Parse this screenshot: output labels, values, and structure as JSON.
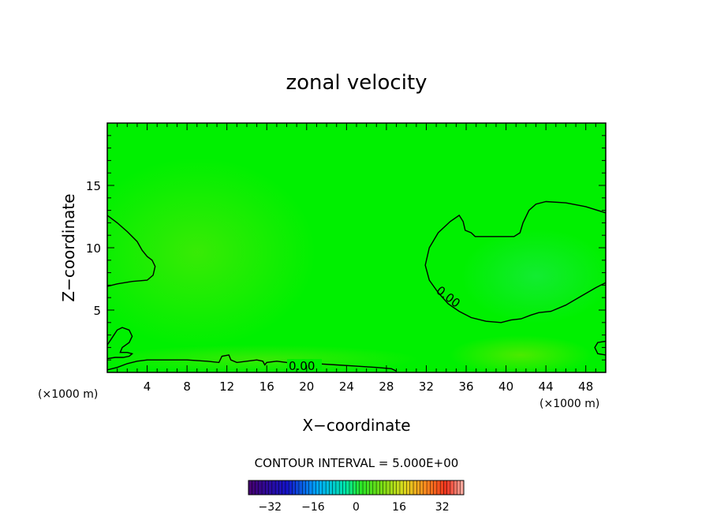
{
  "chart_data": {
    "type": "heatmap",
    "title": "zonal velocity",
    "xlabel": "X−coordinate",
    "ylabel": "Z−coordinate",
    "x_unit_left": "(×1000 m)",
    "x_unit_right": "(×1000 m)",
    "xlim": [
      0,
      50
    ],
    "ylim": [
      0,
      20
    ],
    "xticks": [
      4,
      8,
      12,
      16,
      20,
      24,
      28,
      32,
      36,
      40,
      44,
      48
    ],
    "yticks": [
      5,
      10,
      15
    ],
    "contour_label": "0.00",
    "contour_interval_text": "CONTOUR INTERVAL = 5.000E+00",
    "colorbar": {
      "min": -40,
      "max": 40,
      "ticks": [
        -32,
        -16,
        0,
        16,
        32
      ],
      "tick_labels": [
        "−32",
        "−16",
        "0",
        "16",
        "32"
      ]
    },
    "contours": [
      {
        "name": "left-upper",
        "points": [
          [
            0,
            12.6
          ],
          [
            1,
            12
          ],
          [
            2,
            11.3
          ],
          [
            3,
            10.5
          ],
          [
            3.5,
            9.8
          ],
          [
            4,
            9.3
          ],
          [
            4.5,
            9
          ],
          [
            4.8,
            8.5
          ],
          [
            4.6,
            7.8
          ],
          [
            4,
            7.4
          ],
          [
            2.5,
            7.3
          ],
          [
            1,
            7.1
          ],
          [
            0,
            6.9
          ]
        ]
      },
      {
        "name": "bottom",
        "points": [
          [
            0,
            0.2
          ],
          [
            1,
            0.4
          ],
          [
            2,
            0.7
          ],
          [
            3,
            0.9
          ],
          [
            4,
            1.0
          ],
          [
            6,
            1.0
          ],
          [
            8,
            1.0
          ],
          [
            10,
            0.9
          ],
          [
            11.2,
            0.8
          ],
          [
            11.5,
            1.3
          ],
          [
            12.2,
            1.4
          ],
          [
            12.4,
            1.0
          ],
          [
            13,
            0.8
          ],
          [
            14,
            0.9
          ],
          [
            15,
            1.0
          ],
          [
            15.6,
            0.9
          ],
          [
            15.8,
            0.6
          ],
          [
            16,
            0.8
          ],
          [
            17,
            0.9
          ],
          [
            18,
            0.8
          ],
          [
            19,
            0.7
          ],
          [
            21,
            0.7
          ],
          [
            23,
            0.6
          ],
          [
            25,
            0.5
          ],
          [
            27,
            0.4
          ],
          [
            28.5,
            0.3
          ],
          [
            29,
            0.1
          ]
        ]
      },
      {
        "name": "left-lower",
        "points": [
          [
            0,
            2.2
          ],
          [
            0.5,
            2.8
          ],
          [
            1,
            3.4
          ],
          [
            1.5,
            3.6
          ],
          [
            2.2,
            3.4
          ],
          [
            2.5,
            2.9
          ],
          [
            2.2,
            2.4
          ],
          [
            1.5,
            2.0
          ],
          [
            1.3,
            1.6
          ],
          [
            2,
            1.6
          ],
          [
            2.5,
            1.5
          ],
          [
            2.2,
            1.3
          ],
          [
            1.6,
            1.2
          ],
          [
            0.8,
            1.2
          ],
          [
            0,
            1.1
          ]
        ]
      },
      {
        "name": "right",
        "points": [
          [
            50,
            12.8
          ],
          [
            48,
            13.3
          ],
          [
            46,
            13.6
          ],
          [
            44,
            13.7
          ],
          [
            43,
            13.5
          ],
          [
            42.3,
            13
          ],
          [
            41.7,
            12
          ],
          [
            41.4,
            11.2
          ],
          [
            40.8,
            10.9
          ],
          [
            39,
            10.9
          ],
          [
            36.9,
            10.9
          ],
          [
            36.5,
            11.2
          ],
          [
            35.9,
            11.4
          ],
          [
            35.7,
            12.1
          ],
          [
            35.3,
            12.6
          ],
          [
            34.4,
            12.1
          ],
          [
            33.2,
            11.2
          ],
          [
            32.3,
            10
          ],
          [
            31.9,
            8.6
          ],
          [
            32.3,
            7.4
          ],
          [
            33.2,
            6.4
          ],
          [
            34.2,
            5.5
          ],
          [
            35.3,
            4.9
          ],
          [
            36.5,
            4.4
          ],
          [
            38,
            4.1
          ],
          [
            39.5,
            4.0
          ],
          [
            40.5,
            4.2
          ],
          [
            41.5,
            4.3
          ],
          [
            42.5,
            4.6
          ],
          [
            43.3,
            4.8
          ],
          [
            44.5,
            4.9
          ],
          [
            46,
            5.4
          ],
          [
            47.5,
            6.1
          ],
          [
            49,
            6.8
          ],
          [
            50,
            7.2
          ]
        ]
      },
      {
        "name": "right-bottom-corner",
        "points": [
          [
            50,
            2.5
          ],
          [
            49.2,
            2.4
          ],
          [
            48.9,
            2.0
          ],
          [
            49.2,
            1.5
          ],
          [
            50,
            1.4
          ]
        ]
      }
    ]
  }
}
